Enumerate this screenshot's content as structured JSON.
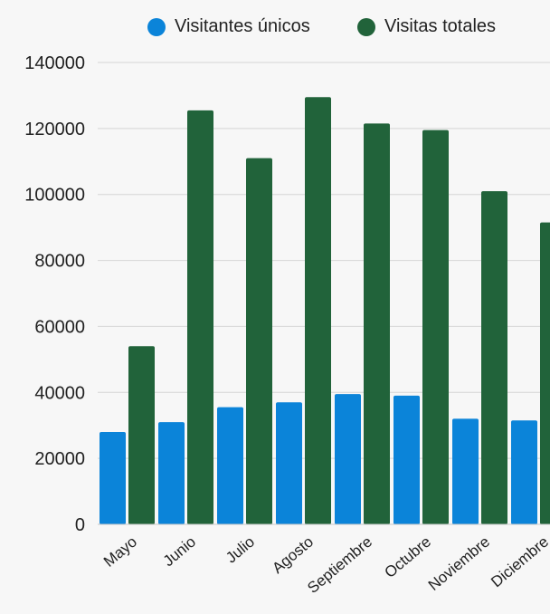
{
  "chart_data": {
    "type": "bar",
    "categories": [
      "Mayo",
      "Junio",
      "Julio",
      "Agosto",
      "Septiembre",
      "Octubre",
      "Noviembre",
      "Diciembre"
    ],
    "series": [
      {
        "name": "Visitantes únicos",
        "color": "#0b84d9",
        "values": [
          28000,
          31000,
          35500,
          37000,
          39500,
          39000,
          32000,
          31500
        ]
      },
      {
        "name": "Visitas totales",
        "color": "#21633a",
        "values": [
          54000,
          125500,
          111000,
          129500,
          121500,
          119500,
          101000,
          91500
        ]
      }
    ],
    "yticks": [
      0,
      20000,
      40000,
      60000,
      80000,
      100000,
      120000,
      140000
    ],
    "ylim": [
      0,
      140000
    ],
    "grid": true,
    "legend_position": "top"
  }
}
